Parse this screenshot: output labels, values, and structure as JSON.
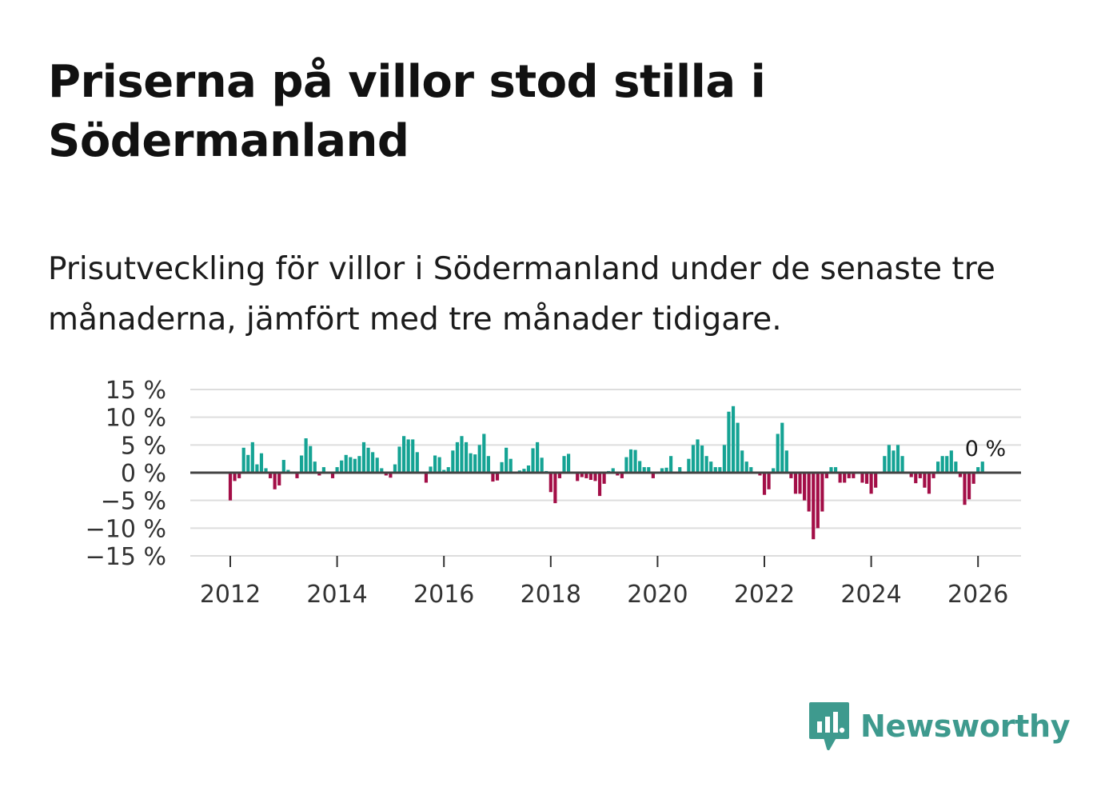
{
  "title": "Priserna på villor stod stilla i Södermanland",
  "subtitle": "Prisutveckling för villor i Södermanland under de senaste tre månaderna, jämfört med tre månader tidigare.",
  "brand": {
    "name": "Newsworthy",
    "color": "#3e9a8e",
    "icon": "newsworthy-logo-icon"
  },
  "colors": {
    "positive": "#15a394",
    "negative": "#a30e47",
    "grid": "#dddddd",
    "zero_line": "#444444"
  },
  "chart_data": {
    "type": "bar",
    "title": "Prisutveckling för villor i Södermanland",
    "xlabel": "",
    "ylabel": "",
    "ylim": [
      -15,
      15
    ],
    "y_ticks": [
      15,
      10,
      5,
      0,
      -5,
      -10,
      -15
    ],
    "y_tick_labels": [
      "15 %",
      "10 %",
      "5 %",
      "0 %",
      "−5 %",
      "−10 %",
      "−15 %"
    ],
    "x_ticks": [
      2012,
      2014,
      2016,
      2018,
      2020,
      2022,
      2024,
      2026
    ],
    "x_tick_labels": [
      "2012",
      "2014",
      "2016",
      "2018",
      "2020",
      "2022",
      "2024",
      "2026"
    ],
    "start": {
      "year": 2012,
      "month": 1
    },
    "annotation": "0 %",
    "values": [
      -5.0,
      -1.5,
      -1.0,
      4.5,
      3.2,
      5.5,
      1.5,
      3.5,
      0.8,
      -1.0,
      -3.0,
      -2.3,
      2.3,
      0.5,
      0.0,
      -1.0,
      3.1,
      6.2,
      4.8,
      2.0,
      -0.5,
      1.0,
      0.0,
      -1.0,
      1.0,
      2.2,
      3.2,
      2.8,
      2.5,
      3.0,
      5.5,
      4.5,
      3.7,
      2.7,
      0.8,
      -0.5,
      -0.9,
      1.5,
      4.7,
      6.6,
      6.0,
      6.0,
      3.7,
      0.2,
      -1.8,
      1.1,
      3.1,
      2.8,
      0.5,
      1.0,
      4.0,
      5.5,
      6.6,
      5.5,
      3.5,
      3.3,
      5.0,
      7.0,
      3.0,
      -1.6,
      -1.4,
      1.9,
      4.5,
      2.5,
      0.0,
      0.4,
      0.7,
      1.3,
      4.4,
      5.5,
      2.7,
      0.3,
      -3.5,
      -5.5,
      -1.0,
      3.0,
      3.4,
      0.0,
      -1.5,
      -0.8,
      -1.0,
      -1.3,
      -1.5,
      -4.2,
      -2.0,
      0.3,
      0.8,
      -0.5,
      -1.0,
      2.8,
      4.2,
      4.1,
      2.1,
      1.0,
      1.0,
      -1.0,
      0.0,
      0.8,
      0.9,
      3.0,
      0.0,
      1.0,
      0.0,
      2.5,
      5.0,
      6.0,
      4.9,
      3.0,
      2.0,
      1.0,
      1.0,
      5.0,
      11.0,
      12.0,
      9.0,
      4.0,
      2.0,
      1.0,
      0.0,
      -0.5,
      -4.0,
      -3.0,
      0.8,
      7.0,
      9.0,
      4.0,
      -1.0,
      -3.8,
      -3.8,
      -5.0,
      -7.0,
      -12.0,
      -10.0,
      -7.0,
      -1.0,
      1.0,
      1.0,
      -1.8,
      -1.8,
      -1.0,
      -1.0,
      0.0,
      -1.8,
      -2.0,
      -3.8,
      -2.7,
      0.0,
      3.0,
      5.0,
      4.0,
      5.0,
      3.0,
      0.0,
      -0.8,
      -1.9,
      -1.0,
      -2.7,
      -3.8,
      -1.0,
      2.0,
      3.0,
      3.0,
      4.0,
      2.0,
      -0.8,
      -5.8,
      -4.8,
      -2.0,
      1.0,
      2.0
    ]
  }
}
